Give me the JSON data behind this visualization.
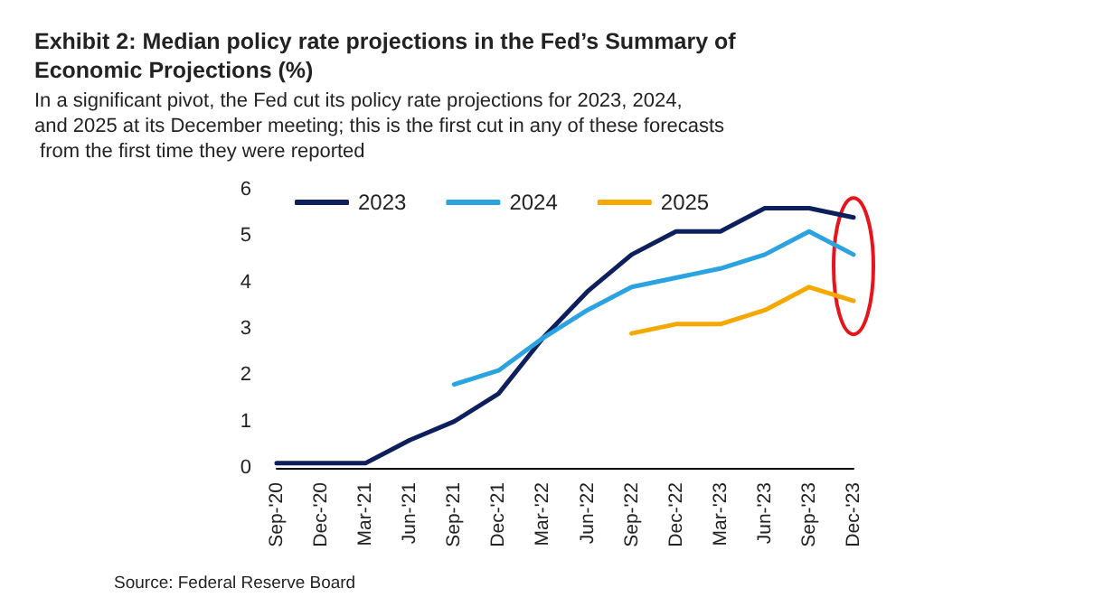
{
  "chart_data": {
    "type": "line",
    "title": "Exhibit 2: Median policy rate projections in the Fed’s Summary of Economic Projections (%)",
    "subtitle": "In a significant pivot, the Fed cut its policy rate projections for 2023, 2024, and 2025 at its December meeting; this is the first cut in any of these forecasts from the first time they were reported",
    "categories": [
      "Sep-'20",
      "Dec-'20",
      "Mar-'21",
      "Jun-'21",
      "Sep-'21",
      "Dec-'21",
      "Mar-'22",
      "Jun-'22",
      "Sep-'22",
      "Dec-'22",
      "Mar-'23",
      "Jun-'23",
      "Sep-'23",
      "Dec-'23"
    ],
    "series": [
      {
        "name": "2023",
        "color": "#0d1f5c",
        "values": [
          0.1,
          0.1,
          0.1,
          0.6,
          1.0,
          1.6,
          2.8,
          3.8,
          4.6,
          5.1,
          5.1,
          5.6,
          5.6,
          5.4
        ]
      },
      {
        "name": "2024",
        "color": "#2ba3e0",
        "values": [
          null,
          null,
          null,
          null,
          1.8,
          2.1,
          2.8,
          3.4,
          3.9,
          4.1,
          4.3,
          4.6,
          5.1,
          4.6
        ]
      },
      {
        "name": "2025",
        "color": "#f5a800",
        "values": [
          null,
          null,
          null,
          null,
          null,
          null,
          null,
          null,
          2.9,
          3.1,
          3.1,
          3.4,
          3.9,
          3.6
        ]
      }
    ],
    "ylim": [
      0,
      6
    ],
    "yticks": [
      0,
      1,
      2,
      3,
      4,
      5,
      6
    ],
    "grid": false,
    "legend": "top left",
    "marker": "none",
    "line_style": "solid",
    "annotations": [
      "Source: Federal Reserve Board"
    ]
  }
}
